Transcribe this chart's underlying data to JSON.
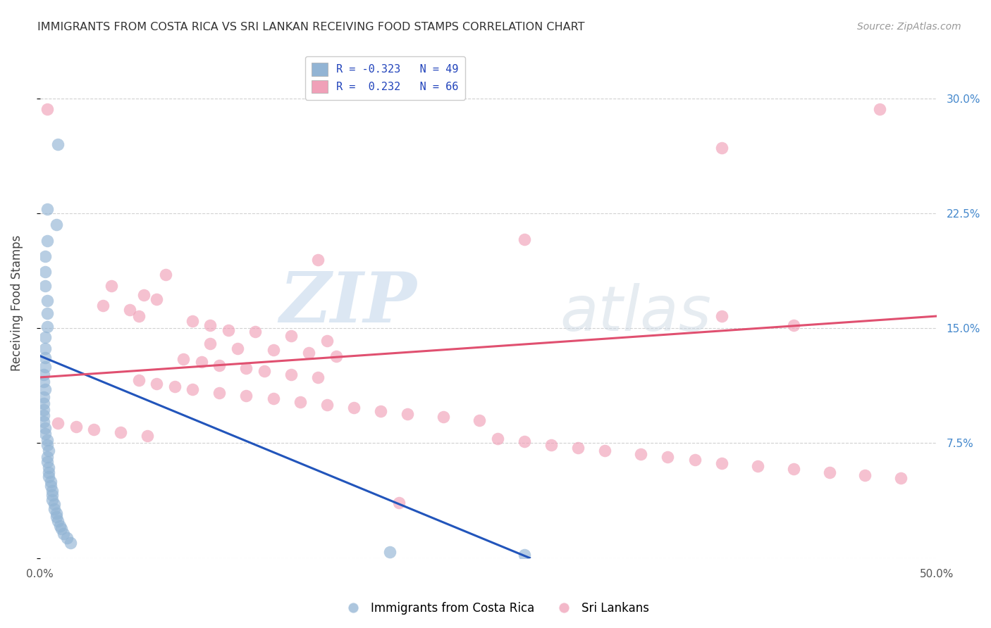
{
  "title": "IMMIGRANTS FROM COSTA RICA VS SRI LANKAN RECEIVING FOOD STAMPS CORRELATION CHART",
  "source": "Source: ZipAtlas.com",
  "ylabel": "Receiving Food Stamps",
  "xmin": 0.0,
  "xmax": 0.5,
  "ymin": 0.0,
  "ymax": 0.333,
  "xticks": [
    0.0,
    0.1,
    0.2,
    0.3,
    0.4,
    0.5
  ],
  "xticklabels": [
    "0.0%",
    "",
    "",
    "",
    "",
    "50.0%"
  ],
  "yticks": [
    0.0,
    0.075,
    0.15,
    0.225,
    0.3
  ],
  "yticklabels_right": [
    "",
    "7.5%",
    "15.0%",
    "22.5%",
    "30.0%"
  ],
  "blue_color": "#92b4d4",
  "pink_color": "#f0a0b8",
  "blue_line_color": "#2255bb",
  "pink_line_color": "#e05070",
  "watermark_zip": "ZIP",
  "watermark_atlas": "atlas",
  "blue_line_x": [
    0.0,
    0.273
  ],
  "blue_line_y_start": 0.132,
  "blue_line_y_end": 0.0,
  "pink_line_x": [
    0.0,
    0.5
  ],
  "pink_line_y_start": 0.118,
  "pink_line_y_end": 0.158,
  "background_color": "#ffffff",
  "grid_color": "#cccccc",
  "blue_points": [
    [
      0.01,
      0.27
    ],
    [
      0.004,
      0.228
    ],
    [
      0.009,
      0.218
    ],
    [
      0.004,
      0.207
    ],
    [
      0.003,
      0.197
    ],
    [
      0.003,
      0.187
    ],
    [
      0.003,
      0.178
    ],
    [
      0.004,
      0.168
    ],
    [
      0.004,
      0.16
    ],
    [
      0.004,
      0.151
    ],
    [
      0.003,
      0.144
    ],
    [
      0.003,
      0.137
    ],
    [
      0.003,
      0.131
    ],
    [
      0.003,
      0.125
    ],
    [
      0.002,
      0.12
    ],
    [
      0.002,
      0.115
    ],
    [
      0.003,
      0.11
    ],
    [
      0.002,
      0.105
    ],
    [
      0.002,
      0.101
    ],
    [
      0.002,
      0.097
    ],
    [
      0.002,
      0.093
    ],
    [
      0.002,
      0.089
    ],
    [
      0.003,
      0.085
    ],
    [
      0.003,
      0.081
    ],
    [
      0.004,
      0.077
    ],
    [
      0.004,
      0.074
    ],
    [
      0.005,
      0.07
    ],
    [
      0.004,
      0.066
    ],
    [
      0.004,
      0.063
    ],
    [
      0.005,
      0.059
    ],
    [
      0.005,
      0.056
    ],
    [
      0.005,
      0.053
    ],
    [
      0.006,
      0.05
    ],
    [
      0.006,
      0.047
    ],
    [
      0.007,
      0.044
    ],
    [
      0.007,
      0.041
    ],
    [
      0.007,
      0.038
    ],
    [
      0.008,
      0.035
    ],
    [
      0.008,
      0.032
    ],
    [
      0.009,
      0.029
    ],
    [
      0.009,
      0.027
    ],
    [
      0.01,
      0.024
    ],
    [
      0.011,
      0.021
    ],
    [
      0.012,
      0.019
    ],
    [
      0.013,
      0.016
    ],
    [
      0.015,
      0.013
    ],
    [
      0.017,
      0.01
    ],
    [
      0.195,
      0.004
    ],
    [
      0.27,
      0.002
    ]
  ],
  "pink_points": [
    [
      0.004,
      0.293
    ],
    [
      0.468,
      0.293
    ],
    [
      0.38,
      0.268
    ],
    [
      0.27,
      0.208
    ],
    [
      0.155,
      0.195
    ],
    [
      0.07,
      0.185
    ],
    [
      0.04,
      0.178
    ],
    [
      0.058,
      0.172
    ],
    [
      0.065,
      0.169
    ],
    [
      0.035,
      0.165
    ],
    [
      0.05,
      0.162
    ],
    [
      0.055,
      0.158
    ],
    [
      0.085,
      0.155
    ],
    [
      0.095,
      0.152
    ],
    [
      0.105,
      0.149
    ],
    [
      0.12,
      0.148
    ],
    [
      0.14,
      0.145
    ],
    [
      0.16,
      0.142
    ],
    [
      0.095,
      0.14
    ],
    [
      0.11,
      0.137
    ],
    [
      0.13,
      0.136
    ],
    [
      0.15,
      0.134
    ],
    [
      0.165,
      0.132
    ],
    [
      0.08,
      0.13
    ],
    [
      0.09,
      0.128
    ],
    [
      0.1,
      0.126
    ],
    [
      0.115,
      0.124
    ],
    [
      0.125,
      0.122
    ],
    [
      0.14,
      0.12
    ],
    [
      0.155,
      0.118
    ],
    [
      0.055,
      0.116
    ],
    [
      0.065,
      0.114
    ],
    [
      0.075,
      0.112
    ],
    [
      0.085,
      0.11
    ],
    [
      0.1,
      0.108
    ],
    [
      0.115,
      0.106
    ],
    [
      0.13,
      0.104
    ],
    [
      0.145,
      0.102
    ],
    [
      0.16,
      0.1
    ],
    [
      0.175,
      0.098
    ],
    [
      0.19,
      0.096
    ],
    [
      0.205,
      0.094
    ],
    [
      0.225,
      0.092
    ],
    [
      0.245,
      0.09
    ],
    [
      0.01,
      0.088
    ],
    [
      0.02,
      0.086
    ],
    [
      0.03,
      0.084
    ],
    [
      0.045,
      0.082
    ],
    [
      0.06,
      0.08
    ],
    [
      0.255,
      0.078
    ],
    [
      0.27,
      0.076
    ],
    [
      0.285,
      0.074
    ],
    [
      0.3,
      0.072
    ],
    [
      0.315,
      0.07
    ],
    [
      0.335,
      0.068
    ],
    [
      0.35,
      0.066
    ],
    [
      0.365,
      0.064
    ],
    [
      0.38,
      0.062
    ],
    [
      0.4,
      0.06
    ],
    [
      0.42,
      0.058
    ],
    [
      0.44,
      0.056
    ],
    [
      0.46,
      0.054
    ],
    [
      0.48,
      0.052
    ],
    [
      0.2,
      0.036
    ],
    [
      0.38,
      0.158
    ],
    [
      0.42,
      0.152
    ]
  ],
  "legend_label_blue": "R = -0.323   N = 49",
  "legend_label_pink": "R =  0.232   N = 66",
  "bottom_label_blue": "Immigrants from Costa Rica",
  "bottom_label_pink": "Sri Lankans"
}
